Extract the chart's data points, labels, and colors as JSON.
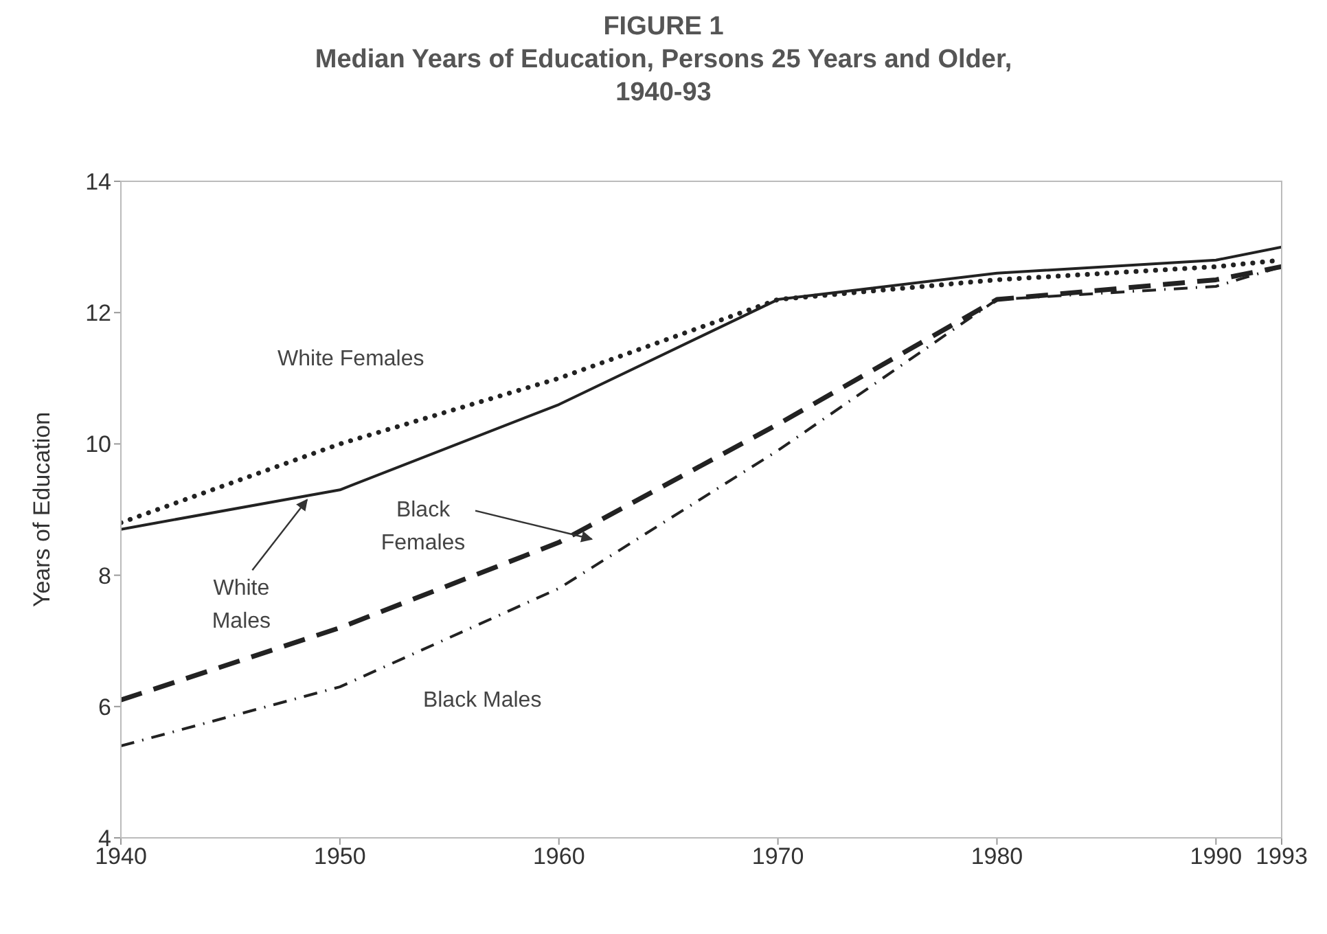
{
  "chart_data": {
    "type": "line",
    "title": "FIGURE 1",
    "subtitle": "Median Years of Education, Persons 25 Years and Older, 1940-93",
    "ylabel": "Years of Education",
    "x": [
      1940,
      1950,
      1960,
      1970,
      1980,
      1990,
      1993
    ],
    "series": [
      {
        "name": "White Males",
        "color": "#222222",
        "line_style": "solid",
        "values": [
          8.7,
          9.3,
          10.6,
          12.2,
          12.6,
          12.8,
          13.0
        ]
      },
      {
        "name": "White Females",
        "color": "#222222",
        "line_style": "dotted",
        "values": [
          8.8,
          10.0,
          11.0,
          12.2,
          12.5,
          12.7,
          12.8
        ]
      },
      {
        "name": "Black Females",
        "color": "#222222",
        "line_style": "dashed",
        "values": [
          6.1,
          7.2,
          8.5,
          10.3,
          12.2,
          12.5,
          12.7
        ]
      },
      {
        "name": "Black Males",
        "color": "#222222",
        "line_style": "dashdot",
        "values": [
          5.4,
          6.3,
          7.8,
          9.9,
          12.2,
          12.4,
          12.7
        ]
      }
    ],
    "xlim": [
      1940,
      1993
    ],
    "xticks": [
      1940,
      1950,
      1960,
      1970,
      1980,
      1990,
      1993
    ],
    "ylim": [
      4,
      14
    ],
    "yticks": [
      4,
      6,
      8,
      10,
      12,
      14
    ],
    "grid": false,
    "legend": false,
    "marker": "none"
  }
}
